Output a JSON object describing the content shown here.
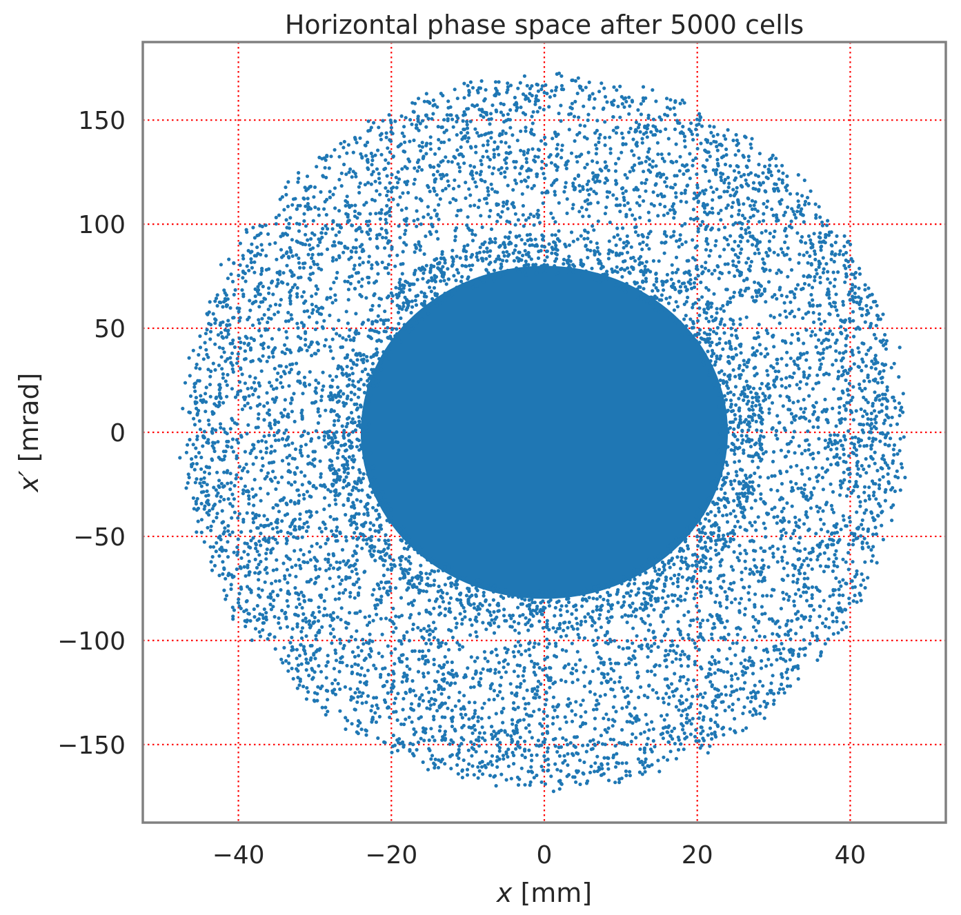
{
  "chart_data": {
    "type": "scatter",
    "title": "Horizontal phase space after 5000 cells",
    "xlabel_var": "x",
    "xlabel_unit": "[mm]",
    "ylabel_var": "x′",
    "ylabel_unit": "[mrad]",
    "xlim": [
      -52.5,
      52.5
    ],
    "ylim": [
      -187.5,
      187.5
    ],
    "xticks": [
      -40,
      -20,
      0,
      20,
      40
    ],
    "yticks": [
      -150,
      -100,
      -50,
      0,
      50,
      100,
      150
    ],
    "xtick_labels": [
      "−40",
      "−20",
      "0",
      "20",
      "40"
    ],
    "ytick_labels": [
      "−150",
      "−100",
      "−50",
      "0",
      "50",
      "100",
      "150"
    ],
    "grid": true,
    "grid_color": "#ff0000",
    "grid_style": "dotted",
    "marker_color": "#1f77b4",
    "series": [
      {
        "center": [
          0,
          0
        ],
        "core_radius_x": 24,
        "core_radius_y": 80,
        "halo_radius_x": 47,
        "halo_radius_y": 170,
        "approx_extent_x": [
          -48,
          47
        ],
        "approx_extent_y": [
          -172,
          170
        ]
      }
    ]
  }
}
